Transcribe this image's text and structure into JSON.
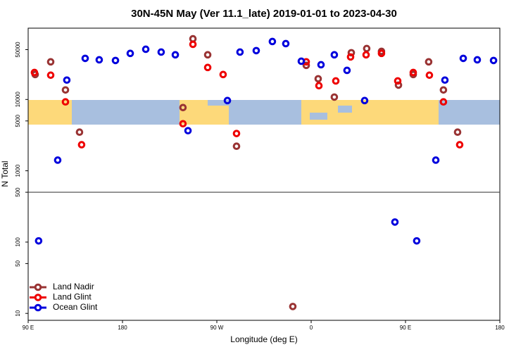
{
  "chart_data": {
    "type": "scatter",
    "title": "30N-45N May (Ver 11.1_late)   2019-01-01 to 2023-04-30",
    "x_label": "Longitude (deg E)",
    "y_label": "N Total",
    "log_y": true,
    "hline": 500,
    "legend": "lower left",
    "xlim": [
      90,
      540
    ],
    "xticks": [
      {
        "value": 90,
        "label": "90 E"
      },
      180,
      {
        "value": 270,
        "label": "90 W"
      },
      {
        "value": 360,
        "label": "0"
      },
      {
        "value": 450,
        "label": "90 E"
      },
      {
        "value": 540,
        "label": "180"
      }
    ],
    "ylim": [
      8,
      100000
    ],
    "yticks": [
      10,
      50,
      100,
      500,
      1000,
      5000,
      10000,
      50000
    ],
    "series": [
      {
        "name": "Land Nadir",
        "color": "#993333",
        "x": [
          96.7,
          111.5,
          125.6,
          139,
          237.7,
          247.2,
          261.3,
          288.8,
          342.5,
          355.3,
          366.7,
          382.1,
          398.3,
          413,
          427.1,
          443.3,
          457.4,
          472.1,
          486.2,
          499.7
        ],
        "values": [
          22400,
          33700,
          13600,
          3480,
          7700,
          71000,
          42300,
          2210,
          12.5,
          30100,
          19500,
          10800,
          45200,
          51800,
          47300,
          15900,
          22400,
          33700,
          13600,
          3480
        ]
      },
      {
        "name": "Land Glint",
        "color": "#ee0000",
        "x": [
          96,
          111.5,
          125.6,
          141,
          237.7,
          247.2,
          261.3,
          276,
          288.8,
          355.3,
          367.4,
          383.5,
          397.6,
          412.4,
          427.1,
          442.6,
          457.4,
          472.8,
          486.2,
          501.7
        ],
        "values": [
          23900,
          21900,
          9250,
          2320,
          4570,
          59300,
          28100,
          22400,
          3330,
          33700,
          15600,
          18200,
          39500,
          42300,
          44300,
          18200,
          23900,
          21900,
          9250,
          2320
        ]
      },
      {
        "name": "Ocean Glint",
        "color": "#0000dd",
        "x": [
          100,
          118.2,
          126.9,
          144.4,
          157.8,
          173.3,
          187.4,
          202.2,
          216.9,
          230.4,
          242.5,
          280.1,
          292.1,
          307.6,
          323,
          335.8,
          350.6,
          369.4,
          382.1,
          394.2,
          411,
          439.9,
          460.7,
          478.9,
          487.6,
          505.1,
          518.5,
          534
        ],
        "values": [
          104,
          1410,
          18700,
          37700,
          36000,
          35200,
          44300,
          50600,
          46200,
          42300,
          3650,
          9660,
          46200,
          48400,
          65000,
          60700,
          34400,
          30700,
          42300,
          25600,
          9660,
          191,
          104,
          1410,
          18700,
          37700,
          36000,
          35200
        ]
      }
    ]
  }
}
